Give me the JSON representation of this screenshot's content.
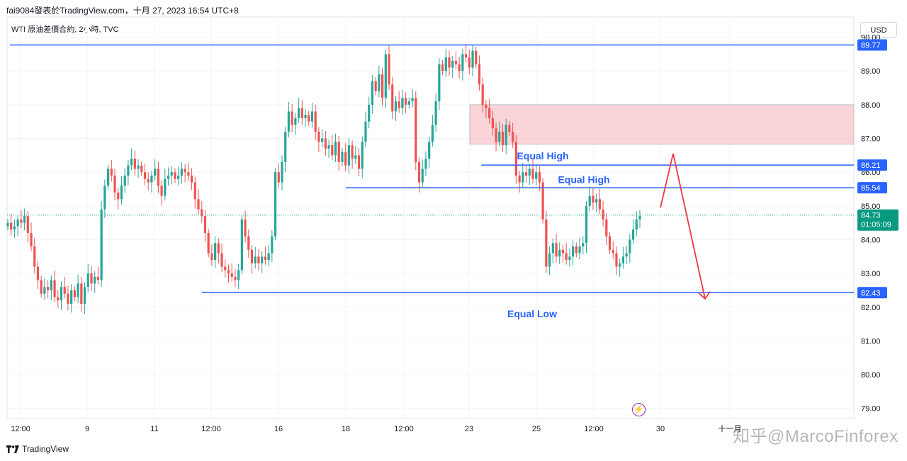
{
  "header": {
    "publisher_line": "fai9084發表於TradingView.com，十月 27, 2023 16:54 UTC+8",
    "symbol_line": "WTI 原油差價合約, 2小時, TVC",
    "currency_button": "USD"
  },
  "footer": {
    "brand": "TradingView",
    "watermark": "知乎@MarcoFinforex"
  },
  "bolt_icon": "⚡",
  "colors": {
    "up": "#26a69a",
    "down": "#ef5350",
    "level_line": "#2962ff",
    "zone_fill": "#f9cdd1",
    "arrow": "#f23645",
    "annotation_text": "#2962ff",
    "price_label_bg": "#2962ff",
    "last_price_bg": "#089981"
  },
  "chart_data": {
    "type": "candlestick",
    "instrument": "WTI 原油差價合約",
    "timeframe": "2小時",
    "x_ticks": [
      "12:00",
      "9",
      "11",
      "12:00",
      "16",
      "18",
      "12:00",
      "23",
      "25",
      "12:00",
      "30",
      "十一月"
    ],
    "y_ticks": [
      "90.00",
      "89.00",
      "88.00",
      "87.00",
      "86.00",
      "85.00",
      "84.00",
      "83.00",
      "82.00",
      "81.00",
      "80.00",
      "79.00"
    ],
    "y_range": [
      78.7,
      90.6
    ],
    "levels": [
      {
        "price": 89.77,
        "label": "89.77",
        "start_frac": 0.0
      },
      {
        "price": 86.21,
        "label": "86.21",
        "start_frac": 0.56
      },
      {
        "price": 85.54,
        "label": "85.54",
        "start_frac": 0.4
      },
      {
        "price": 82.43,
        "label": "82.43",
        "start_frac": 0.23
      }
    ],
    "last_price": {
      "price": 84.73,
      "label": "84.73",
      "countdown": "01:05:09"
    },
    "resistance_zone": {
      "low": 86.83,
      "high": 88.0
    },
    "annotations": [
      {
        "text": "Equal High",
        "price": 86.32
      },
      {
        "text": "Equal High",
        "price": 85.62
      },
      {
        "text": "Equal Low",
        "price": 81.7
      }
    ],
    "projection": {
      "start": 84.95,
      "peak": 86.55,
      "end": 82.25
    },
    "closes": [
      84.5,
      84.3,
      84.4,
      84.6,
      84.5,
      84.7,
      84.2,
      83.8,
      83.2,
      82.8,
      82.4,
      82.6,
      82.5,
      82.8,
      82.3,
      82.2,
      82.6,
      82.4,
      82.1,
      82.5,
      82.3,
      82.7,
      82.1,
      82.6,
      83.0,
      82.7,
      82.9,
      82.8,
      84.9,
      85.6,
      86.1,
      85.9,
      85.4,
      85.2,
      85.6,
      85.9,
      86.2,
      86.4,
      86.1,
      86.2,
      86.0,
      85.8,
      85.7,
      85.9,
      86.1,
      85.6,
      85.3,
      85.8,
      85.9,
      86.0,
      85.8,
      85.9,
      86.1,
      86.0,
      85.9,
      85.7,
      85.2,
      84.9,
      84.7,
      84.2,
      83.6,
      83.4,
      83.9,
      83.6,
      83.2,
      83.1,
      83.0,
      82.9,
      82.8,
      83.1,
      84.6,
      84.1,
      83.7,
      83.3,
      83.5,
      83.3,
      83.5,
      83.4,
      83.6,
      84.1,
      86.0,
      85.7,
      86.3,
      87.2,
      87.8,
      87.4,
      87.6,
      87.9,
      87.6,
      87.7,
      87.5,
      87.8,
      87.2,
      86.9,
      87.0,
      86.7,
      86.8,
      86.5,
      86.9,
      86.3,
      86.6,
      86.2,
      86.8,
      86.4,
      86.5,
      86.1,
      86.9,
      87.5,
      88.0,
      88.7,
      88.4,
      88.9,
      88.2,
      89.5,
      88.6,
      87.8,
      88.1,
      87.9,
      88.2,
      88.0,
      88.1,
      88.2,
      86.3,
      85.7,
      86.1,
      86.4,
      86.9,
      87.4,
      88.1,
      89.2,
      89.0,
      89.4,
      89.1,
      89.3,
      89.2,
      89.0,
      89.5,
      89.4,
      89.1,
      89.6,
      89.2,
      88.6,
      88.0,
      87.9,
      87.6,
      87.3,
      86.9,
      87.2,
      86.8,
      87.4,
      87.2,
      86.9,
      85.9,
      85.7,
      86.0,
      85.9,
      86.1,
      85.8,
      86.0,
      85.7,
      84.6,
      83.2,
      83.6,
      83.9,
      83.5,
      83.7,
      83.6,
      83.4,
      83.5,
      83.8,
      83.6,
      83.8,
      83.9,
      85.0,
      85.3,
      85.1,
      85.2,
      84.9,
      84.6,
      84.1,
      83.7,
      83.6,
      83.2,
      83.3,
      83.5,
      83.6,
      84.0,
      84.3,
      84.6,
      84.7
    ],
    "opens": [
      84.4,
      84.5,
      84.3,
      84.4,
      84.6,
      84.5,
      84.7,
      84.2,
      83.8,
      83.2,
      82.8,
      82.4,
      82.6,
      82.5,
      82.8,
      82.3,
      82.2,
      82.6,
      82.4,
      82.1,
      82.5,
      82.3,
      82.7,
      82.1,
      82.6,
      83.0,
      82.7,
      82.9,
      82.8,
      84.9,
      85.6,
      86.1,
      85.9,
      85.4,
      85.2,
      85.6,
      85.9,
      86.2,
      86.4,
      86.1,
      86.2,
      86.0,
      85.8,
      85.7,
      85.9,
      86.1,
      85.6,
      85.3,
      85.8,
      85.9,
      86.0,
      85.8,
      85.9,
      86.1,
      86.0,
      85.9,
      85.7,
      85.2,
      84.9,
      84.7,
      84.2,
      83.6,
      83.4,
      83.9,
      83.6,
      83.2,
      83.1,
      83.0,
      82.9,
      82.8,
      83.1,
      84.6,
      84.1,
      83.7,
      83.3,
      83.5,
      83.3,
      83.5,
      83.4,
      83.6,
      84.1,
      86.0,
      85.7,
      86.3,
      87.2,
      87.8,
      87.4,
      87.6,
      87.9,
      87.6,
      87.7,
      87.5,
      87.8,
      87.2,
      86.9,
      87.0,
      86.7,
      86.8,
      86.5,
      86.9,
      86.3,
      86.6,
      86.2,
      86.8,
      86.4,
      86.5,
      86.1,
      86.9,
      87.5,
      88.0,
      88.7,
      88.4,
      88.9,
      88.2,
      89.5,
      88.6,
      87.8,
      88.1,
      87.9,
      88.2,
      88.0,
      88.1,
      88.2,
      86.3,
      85.7,
      86.1,
      86.4,
      86.9,
      87.4,
      88.1,
      89.2,
      89.0,
      89.4,
      89.1,
      89.3,
      89.2,
      89.0,
      89.5,
      89.4,
      89.1,
      89.6,
      89.2,
      88.6,
      88.0,
      87.9,
      87.6,
      87.3,
      86.9,
      87.2,
      86.8,
      87.4,
      87.2,
      86.9,
      85.9,
      85.7,
      86.0,
      85.9,
      86.1,
      85.8,
      86.0,
      85.7,
      84.6,
      83.2,
      83.6,
      83.9,
      83.5,
      83.7,
      83.6,
      83.4,
      83.5,
      83.8,
      83.6,
      83.8,
      83.9,
      85.0,
      85.3,
      85.1,
      85.2,
      84.9,
      84.6,
      84.1,
      83.7,
      83.6,
      83.2,
      83.3,
      83.5,
      83.6,
      84.0,
      84.3,
      84.6
    ]
  }
}
